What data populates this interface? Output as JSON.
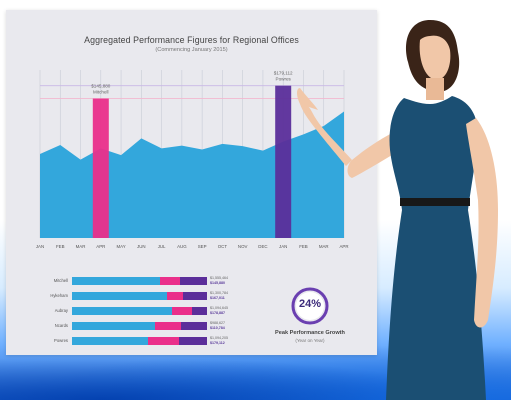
{
  "chart_data": [
    {
      "type": "area",
      "title": "Aggregated Performance Figures for Regional Offices",
      "subtitle": "(Commencing January 2015)",
      "x": [
        "JAN",
        "FEB",
        "MAR",
        "APR",
        "MAY",
        "JUN",
        "JUL",
        "AUG",
        "SEP",
        "OCT",
        "NOV",
        "DEC",
        "JAN",
        "FEB",
        "MAR",
        "APR"
      ],
      "values": [
        150,
        166,
        140,
        160,
        148,
        178,
        160,
        165,
        158,
        168,
        164,
        156,
        172,
        185,
        200,
        226
      ],
      "ylim": [
        0,
        300
      ],
      "highlights": [
        {
          "category_index": 3,
          "label": "Mitchell",
          "value_label": "$145,880",
          "color": "#ea2f8a"
        },
        {
          "category_index": 12,
          "label": "Powres",
          "value_label": "$179,112",
          "color": "#5b2e9a"
        }
      ],
      "reference_lines": [
        {
          "value": 272,
          "color": "#c9b8e6"
        },
        {
          "value": 249,
          "color": "#f2b7cf"
        }
      ],
      "grid": true
    },
    {
      "type": "bar",
      "orientation": "horizontal-stacked",
      "categories": [
        "Mitchell",
        "Hykeham",
        "Aubray",
        "Ncards",
        "Powres"
      ],
      "series": [
        {
          "values": [
            65,
            70,
            68,
            58,
            62
          ],
          "color": "#33a7dc"
        },
        {
          "values": [
            15,
            12,
            14,
            18,
            25
          ],
          "color": "#ea2f8a"
        },
        {
          "values": [
            20,
            18,
            10,
            18,
            23
          ],
          "color": "#5b2e9a"
        }
      ],
      "value_labels": [
        [
          "$1,555,464",
          "$145,880"
        ],
        [
          "$1,300,784",
          "$167,011"
        ],
        [
          "$1,094,645",
          "$178,887"
        ],
        [
          "$988,627",
          "$110,784"
        ],
        [
          "$1,094,205",
          "$179,112"
        ]
      ]
    }
  ],
  "kpi": {
    "value": "24%",
    "label": "Peak Performance Growth",
    "sublabel": "(Year on Year)",
    "ring_color": "#6a3fb0"
  }
}
